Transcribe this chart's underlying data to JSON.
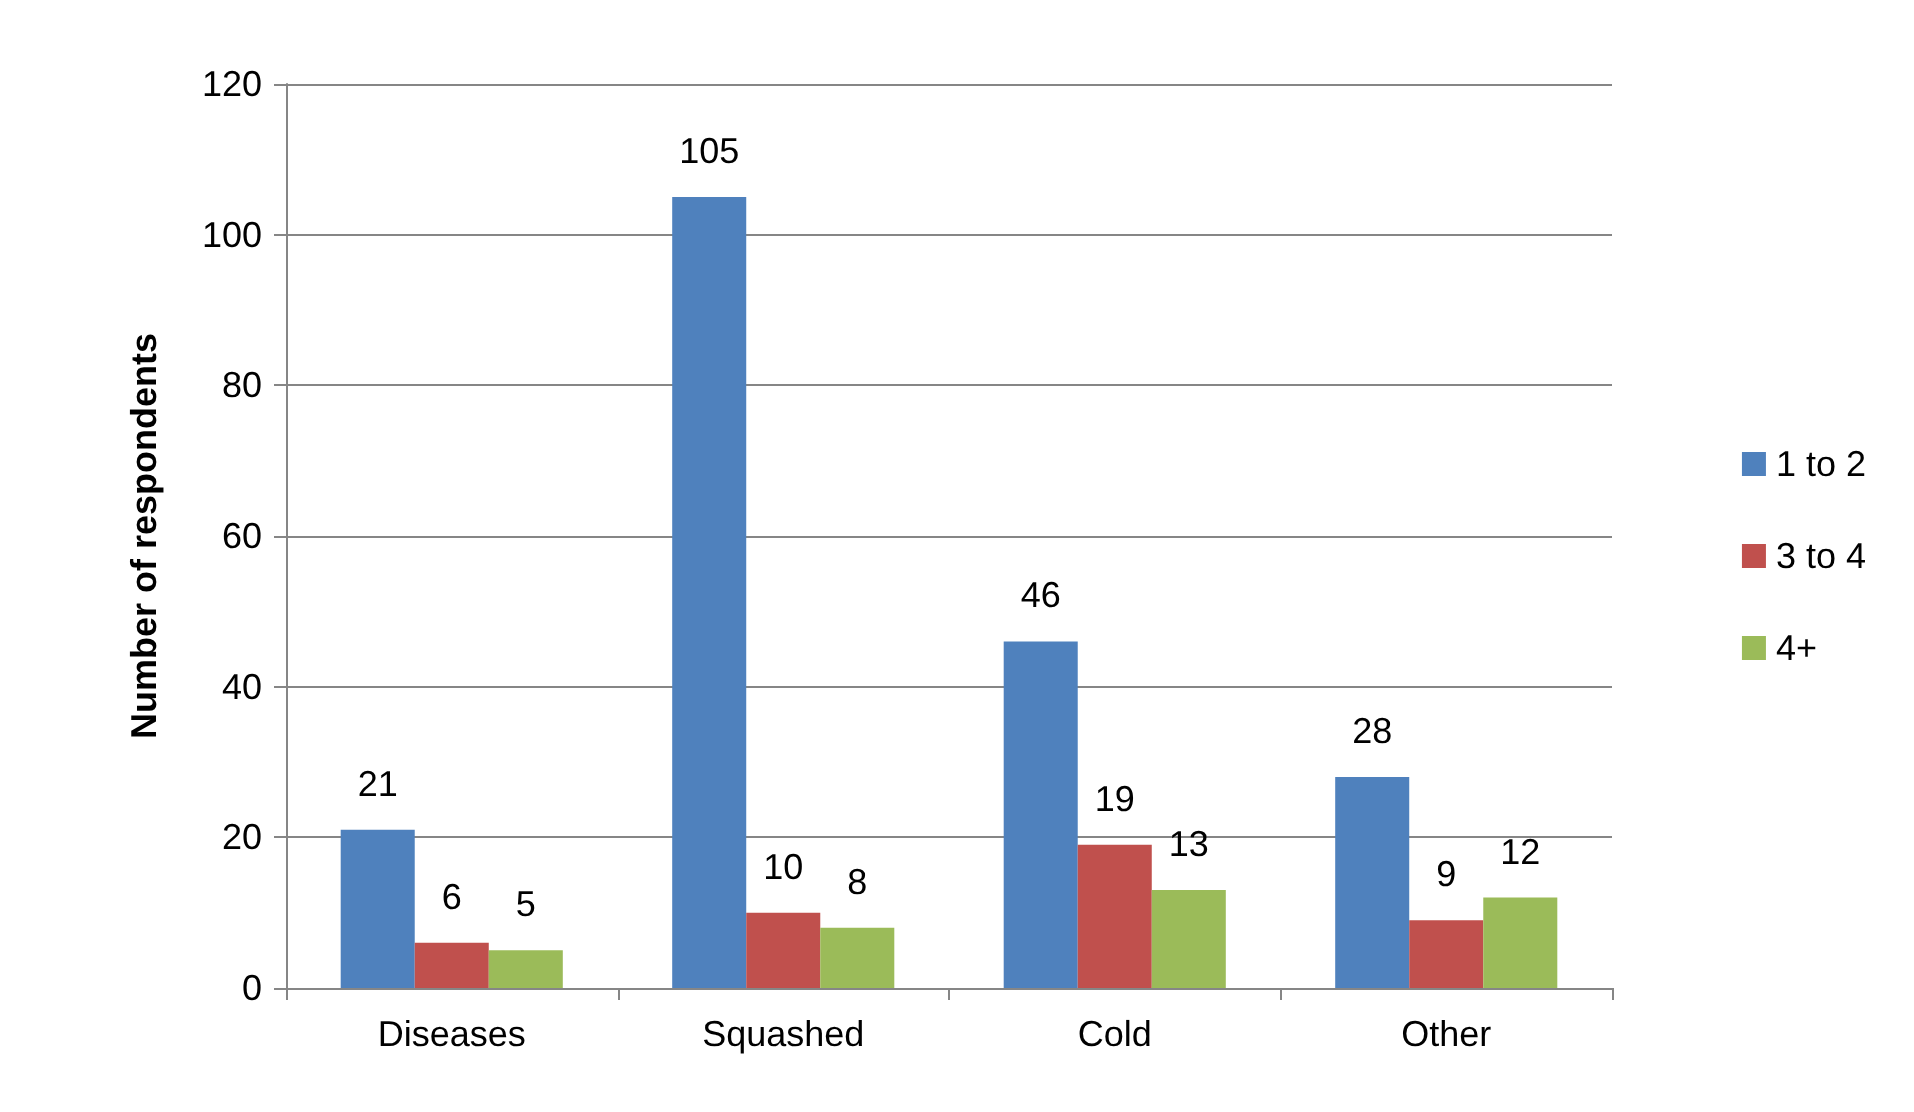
{
  "chart_data": {
    "type": "bar",
    "ylabel": "Number of respondents",
    "categories": [
      "Diseases",
      "Squashed",
      "Cold",
      "Other"
    ],
    "series": [
      {
        "name": "1 to 2",
        "color": "#4f81bd",
        "values": [
          21,
          105,
          46,
          28
        ]
      },
      {
        "name": "3 to 4",
        "color": "#c0504d",
        "values": [
          6,
          10,
          19,
          9
        ]
      },
      {
        "name": "4+",
        "color": "#9bbb59",
        "values": [
          5,
          8,
          13,
          12
        ]
      }
    ],
    "ylim": [
      0,
      120
    ],
    "yticks": [
      0,
      20,
      40,
      60,
      80,
      100,
      120
    ],
    "grid": "y",
    "legend": "right",
    "data_labels": true
  }
}
